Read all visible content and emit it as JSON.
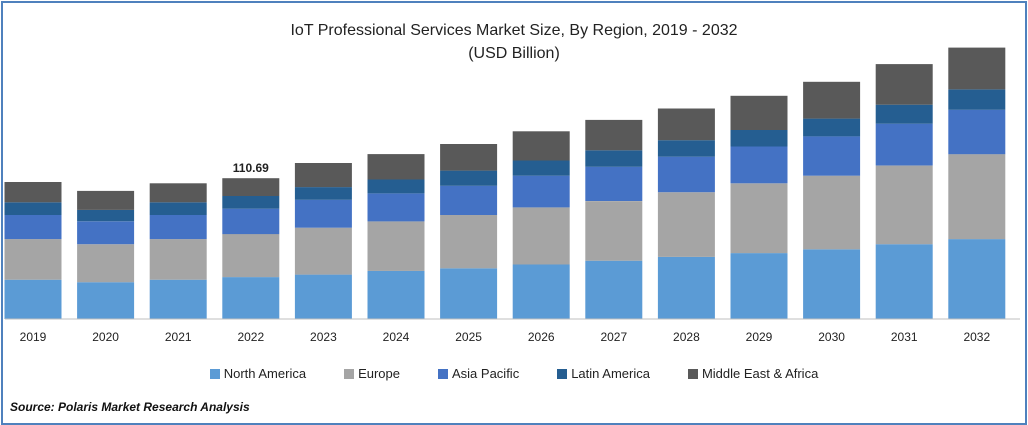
{
  "chart_data": {
    "type": "bar",
    "stacked": true,
    "title": "IoT Professional Services Market Size, By Region, 2019 - 2032",
    "subtitle": "(USD Billion)",
    "categories": [
      "2019",
      "2020",
      "2021",
      "2022",
      "2023",
      "2024",
      "2025",
      "2026",
      "2027",
      "2028",
      "2029",
      "2030",
      "2031",
      "2032"
    ],
    "series": [
      {
        "name": "North America",
        "color": "#5b9bd5",
        "values": [
          31,
          29,
          31,
          33,
          35,
          38,
          40,
          43,
          46,
          49,
          52,
          55,
          59,
          63
        ]
      },
      {
        "name": "Europe",
        "color": "#a5a5a5",
        "values": [
          32,
          30,
          32,
          34,
          37,
          39,
          42,
          45,
          47,
          51,
          55,
          58,
          62,
          67
        ]
      },
      {
        "name": "Asia Pacific",
        "color": "#4472c4",
        "values": [
          19,
          18,
          19,
          20,
          22,
          22,
          23,
          25,
          27,
          28,
          29,
          31,
          33,
          35
        ]
      },
      {
        "name": "Latin America",
        "color": "#255e91",
        "values": [
          10,
          9,
          10,
          10,
          10,
          11,
          12,
          12,
          13,
          13,
          13,
          14,
          15,
          16
        ]
      },
      {
        "name": "Middle East & Africa",
        "color": "#595959",
        "values": [
          16,
          15,
          15,
          14,
          19,
          20,
          21,
          23,
          24,
          25,
          27,
          29,
          32,
          33
        ]
      }
    ],
    "annotations": [
      {
        "category": "2022",
        "label": "110.69"
      }
    ],
    "xlabel": "",
    "ylabel": "",
    "ylim": [
      0,
      220
    ],
    "grid": false,
    "legend": "bottom"
  },
  "source": "Source: Polaris  Market Research Analysis"
}
